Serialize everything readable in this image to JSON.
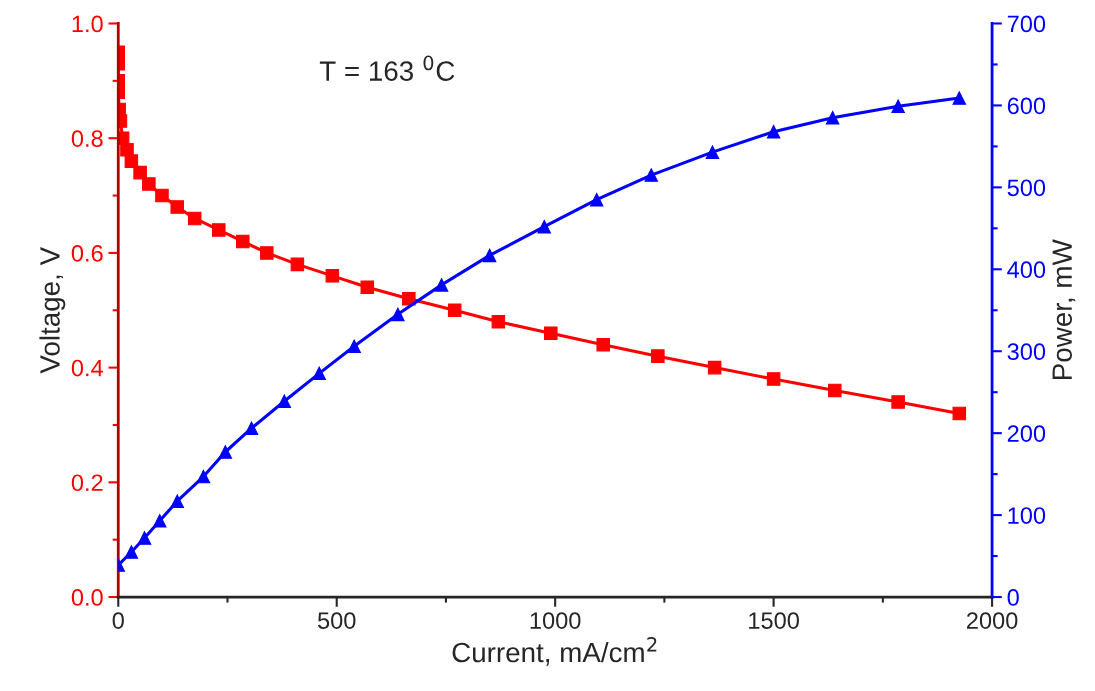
{
  "chart_data": {
    "type": "line",
    "xlabel": "Current, mA/cm$^{2}$",
    "ylabel": "Voltage, V",
    "y2label": "Power, mW",
    "annotations": [
      "T = 163 $^{0}$C"
    ],
    "xlim": [
      0,
      2000
    ],
    "xticks": [
      0,
      500,
      1000,
      1500,
      2000
    ],
    "ylim": [
      0,
      1.0
    ],
    "yticks": [
      {
        "value": 0,
        "label": "0.0"
      },
      {
        "value": 0.2,
        "label": "0.2"
      },
      {
        "value": 0.4,
        "label": "0.4"
      },
      {
        "value": 0.6,
        "label": "0.6"
      },
      {
        "value": 0.8,
        "label": "0.8"
      },
      {
        "value": 1.0,
        "label": "1.0"
      }
    ],
    "y2lim": [
      0,
      700
    ],
    "y2ticks": [
      0,
      100,
      200,
      300,
      400,
      500,
      600,
      700
    ],
    "grid": false,
    "legend": false,
    "series": [
      {
        "color": "#ff0000",
        "marker": "square",
        "line_style": "solid",
        "x": [
          0,
          0,
          0,
          0,
          2,
          5,
          10,
          20,
          30,
          50,
          70,
          100,
          135,
          175,
          230,
          285,
          340,
          410,
          490,
          570,
          665,
          770,
          870,
          990,
          1110,
          1235,
          1365,
          1500,
          1640,
          1785,
          1925
        ],
        "values": [
          0.95,
          0.93,
          0.9,
          0.88,
          0.85,
          0.83,
          0.8,
          0.78,
          0.76,
          0.74,
          0.72,
          0.7,
          0.68,
          0.66,
          0.64,
          0.62,
          0.6,
          0.58,
          0.56,
          0.54,
          0.52,
          0.5,
          0.48,
          0.46,
          0.44,
          0.42,
          0.4,
          0.38,
          0.36,
          0.34,
          0.32
        ]
      },
      {
        "color": "#0000ff",
        "marker": "triangle",
        "line_style": "solid",
        "axis": "y2",
        "x": [
          0,
          30,
          60,
          95,
          135,
          195,
          245,
          305,
          380,
          460,
          540,
          640,
          740,
          850,
          975,
          1095,
          1220,
          1360,
          1500,
          1635,
          1785,
          1925
        ],
        "values": [
          39,
          55,
          72,
          93,
          117,
          147,
          177,
          206,
          239,
          273,
          306,
          345,
          381,
          417,
          452,
          485,
          515,
          543,
          568,
          585,
          599,
          609
        ]
      }
    ]
  }
}
